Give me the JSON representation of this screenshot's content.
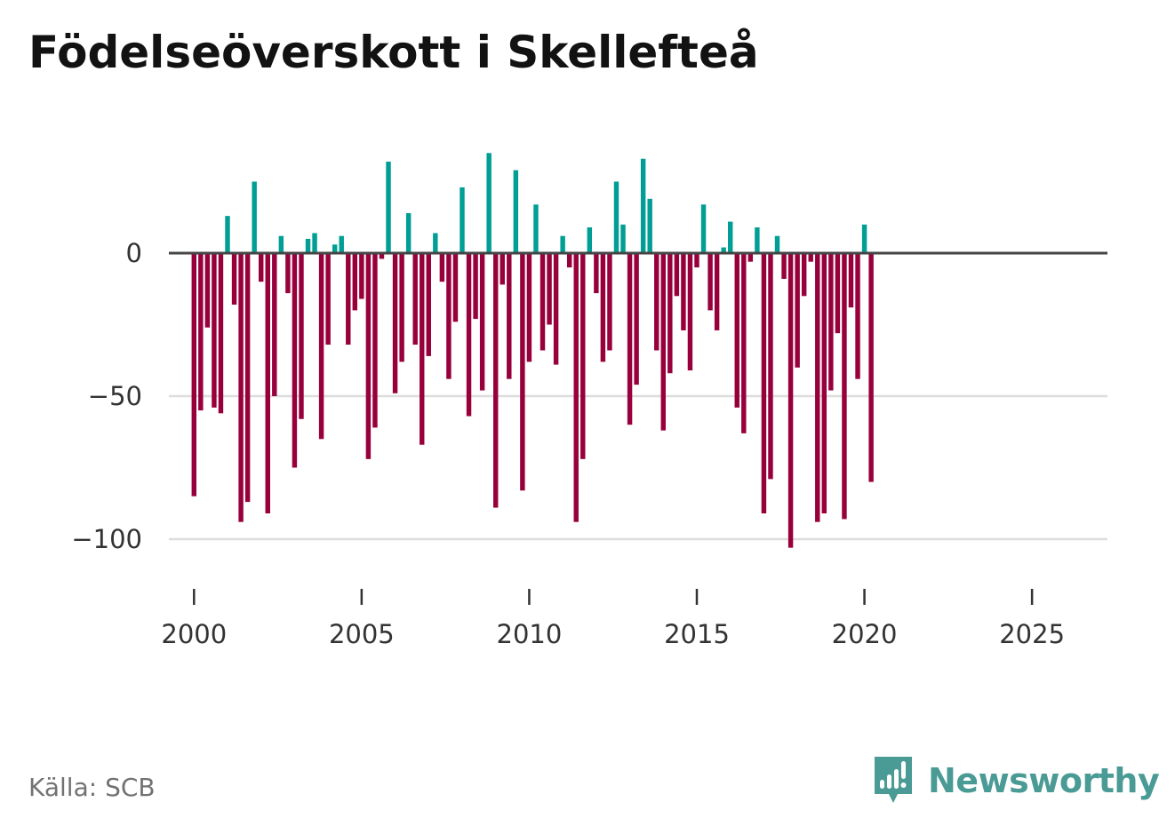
{
  "title": "Födelseöverskott i Skellefteå",
  "source": "Källa: SCB",
  "brand": {
    "name": "Newsworthy",
    "icon": "newsworthy-logo-icon"
  },
  "colors": {
    "positive": "#009e94",
    "negative": "#98003c",
    "zero_line": "#444444",
    "grid": "#dddddd",
    "brand": "#4a9b95"
  },
  "chart_data": {
    "type": "bar",
    "title": "Födelseöverskott i Skellefteå",
    "xlabel": "",
    "ylabel": "",
    "frequency": "monthly-ish (multiple observations per year)",
    "x_start": 2000.0,
    "x_step": 0.2,
    "xlim": [
      1999.25,
      2027.25
    ],
    "ylim": [
      -110,
      45
    ],
    "y_ticks": [
      0,
      -50,
      -100
    ],
    "y_tick_labels": [
      "0",
      "−50",
      "−100"
    ],
    "x_ticks": [
      2000,
      2005,
      2010,
      2015,
      2020,
      2025
    ],
    "x_tick_labels": [
      "2000",
      "2005",
      "2010",
      "2015",
      "2020",
      "2025"
    ],
    "grid": true,
    "values": [
      -85,
      -55,
      -26,
      -54,
      -56,
      13,
      -18,
      -94,
      -87,
      25,
      -10,
      -91,
      -50,
      6,
      -14,
      -75,
      -58,
      5,
      7,
      -65,
      -32,
      3,
      6,
      -32,
      -20,
      -16,
      -72,
      -61,
      -2,
      32,
      -49,
      -38,
      14,
      -32,
      -67,
      -36,
      7,
      -10,
      -44,
      -24,
      23,
      -57,
      -23,
      -48,
      35,
      -89,
      -11,
      -44,
      29,
      -83,
      -38,
      17,
      -34,
      -25,
      -39,
      6,
      -5,
      -94,
      -72,
      9,
      -14,
      -38,
      -34,
      25,
      10,
      -60,
      -46,
      33,
      19,
      -34,
      -62,
      -42,
      -15,
      -27,
      -41,
      -5,
      17,
      -20,
      -27,
      2,
      11,
      -54,
      -63,
      -3,
      9,
      -91,
      -79,
      6,
      -9,
      -103,
      -40,
      -15,
      -3,
      -94,
      -91,
      -48,
      -28,
      -93,
      -19,
      -44,
      10,
      -80
    ]
  }
}
